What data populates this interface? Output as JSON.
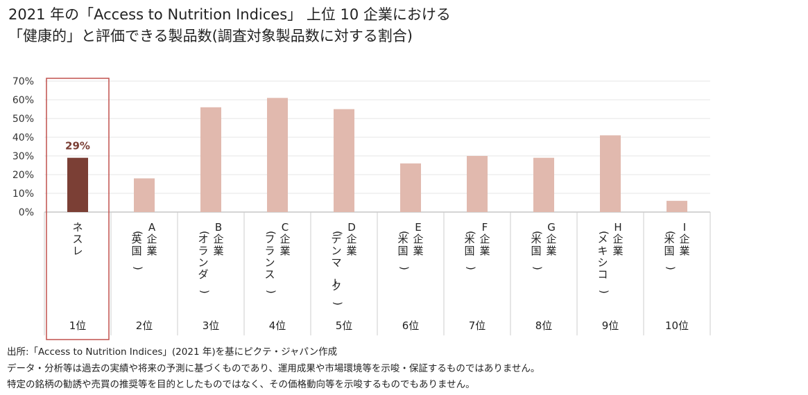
{
  "title": {
    "line1": "2021 年の「Access to Nutrition Indices」 上位 10 企業における",
    "line2": "「健康的」と評価できる製品数(調査対象製品数に対する割合)"
  },
  "chart_data": {
    "type": "bar",
    "categories": [
      {
        "name": "ネスレ",
        "region": "",
        "rank": "1位"
      },
      {
        "name": "A企業",
        "region": "(英国)",
        "rank": "2位"
      },
      {
        "name": "B企業",
        "region": "(オランダ)",
        "rank": "3位"
      },
      {
        "name": "C企業",
        "region": "(フランス)",
        "rank": "4位"
      },
      {
        "name": "D企業",
        "region": "(デンマーク)",
        "rank": "5位"
      },
      {
        "name": "E企業",
        "region": "(米国)",
        "rank": "6位"
      },
      {
        "name": "F企業",
        "region": "(米国)",
        "rank": "7位"
      },
      {
        "name": "G企業",
        "region": "(米国)",
        "rank": "8位"
      },
      {
        "name": "H企業",
        "region": "(メキシコ)",
        "rank": "9位"
      },
      {
        "name": "I企業",
        "region": "(米国)",
        "rank": "10位"
      }
    ],
    "values": [
      29,
      18,
      56,
      61,
      55,
      26,
      30,
      29,
      41,
      6
    ],
    "data_labels": [
      "29%",
      "",
      "",
      "",
      "",
      "",
      "",
      "",
      "",
      ""
    ],
    "yticks": [
      "0%",
      "10%",
      "20%",
      "30%",
      "40%",
      "50%",
      "60%",
      "70%"
    ],
    "ylim": [
      0,
      70
    ],
    "grid": true,
    "highlight_index": 0,
    "colors": {
      "highlight": "#7b3f35",
      "bar": "#e1b9ae",
      "box": "#c0504d",
      "grid": "#e6e6e6",
      "label": "#7b3f35"
    }
  },
  "footnotes": [
    "出所:「Access to Nutrition Indices」(2021 年)を基にピクテ・ジャパン作成",
    "データ・分析等は過去の実績や将来の予測に基づくものであり、運用成果や市場環境等を示唆・保証するものではありません。",
    "特定の銘柄の勧誘や売買の推奨等を目的としたものではなく、その価格動向等を示唆するものでもありません。"
  ]
}
